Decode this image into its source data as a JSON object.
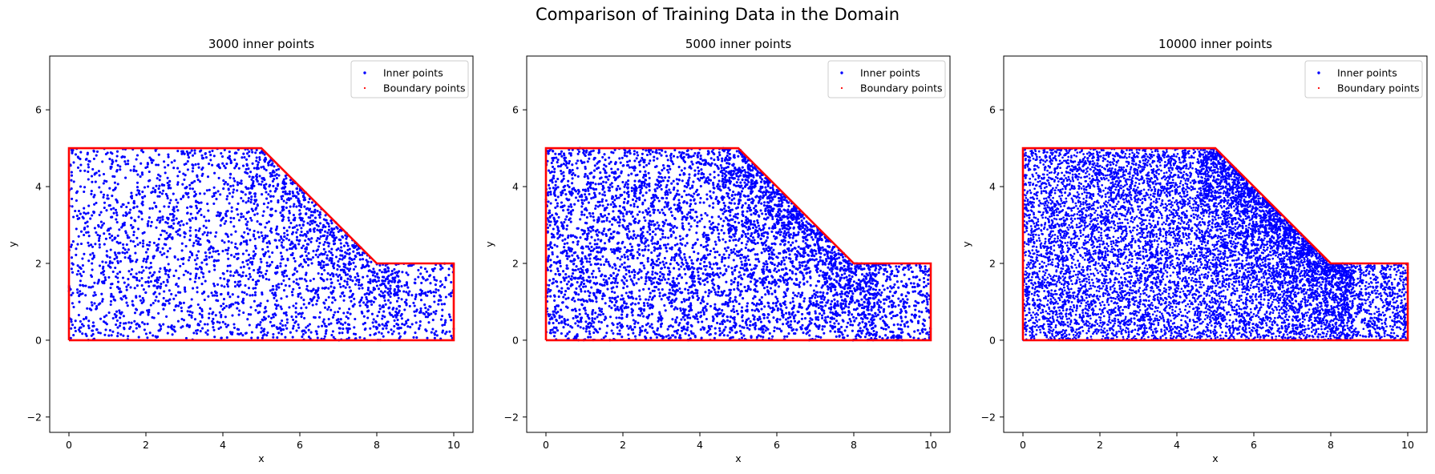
{
  "figure": {
    "title": "Comparison of Training Data in the Domain"
  },
  "colors": {
    "inner": "#0000ff",
    "boundary": "#ff0000",
    "axes": "#000000",
    "background": "#ffffff"
  },
  "chart_data": [
    {
      "type": "scatter",
      "title": "3000 inner points",
      "xlabel": "x",
      "ylabel": "y",
      "xlim": [
        -0.5,
        10.5
      ],
      "ylim": [
        -2.4,
        7.4
      ],
      "xticks": [
        0,
        2,
        4,
        6,
        8,
        10
      ],
      "yticks": [
        -2,
        0,
        2,
        4,
        6
      ],
      "grid": false,
      "legend_position": "top-right",
      "series": [
        {
          "name": "Inner points",
          "marker": "dot",
          "count": 3000,
          "distribution": "uniform in the domain, denser near the sloped edge between x=5 and x=8"
        },
        {
          "name": "Boundary points",
          "marker": "dot",
          "outline": [
            [
              0,
              0
            ],
            [
              10,
              0
            ],
            [
              10,
              2
            ],
            [
              8,
              2
            ],
            [
              5,
              5
            ],
            [
              0,
              5
            ],
            [
              0,
              0
            ]
          ]
        }
      ]
    },
    {
      "type": "scatter",
      "title": "5000 inner points",
      "xlabel": "x",
      "ylabel": "y",
      "xlim": [
        -0.5,
        10.5
      ],
      "ylim": [
        -2.4,
        7.4
      ],
      "xticks": [
        0,
        2,
        4,
        6,
        8,
        10
      ],
      "yticks": [
        -2,
        0,
        2,
        4,
        6
      ],
      "grid": false,
      "legend_position": "top-right",
      "series": [
        {
          "name": "Inner points",
          "marker": "dot",
          "count": 5000,
          "distribution": "uniform in the domain, denser near the sloped edge between x=5 and x=8"
        },
        {
          "name": "Boundary points",
          "marker": "dot",
          "outline": [
            [
              0,
              0
            ],
            [
              10,
              0
            ],
            [
              10,
              2
            ],
            [
              8,
              2
            ],
            [
              5,
              5
            ],
            [
              0,
              5
            ],
            [
              0,
              0
            ]
          ]
        }
      ]
    },
    {
      "type": "scatter",
      "title": "10000 inner points",
      "xlabel": "x",
      "ylabel": "y",
      "xlim": [
        -0.5,
        10.5
      ],
      "ylim": [
        -2.4,
        7.4
      ],
      "xticks": [
        0,
        2,
        4,
        6,
        8,
        10
      ],
      "yticks": [
        -2,
        0,
        2,
        4,
        6
      ],
      "grid": false,
      "legend_position": "top-right",
      "series": [
        {
          "name": "Inner points",
          "marker": "dot",
          "count": 10000,
          "distribution": "uniform in the domain, denser near the sloped edge between x=5 and x=8"
        },
        {
          "name": "Boundary points",
          "marker": "dot",
          "outline": [
            [
              0,
              0
            ],
            [
              10,
              0
            ],
            [
              10,
              2
            ],
            [
              8,
              2
            ],
            [
              5,
              5
            ],
            [
              0,
              5
            ],
            [
              0,
              0
            ]
          ]
        }
      ]
    }
  ]
}
